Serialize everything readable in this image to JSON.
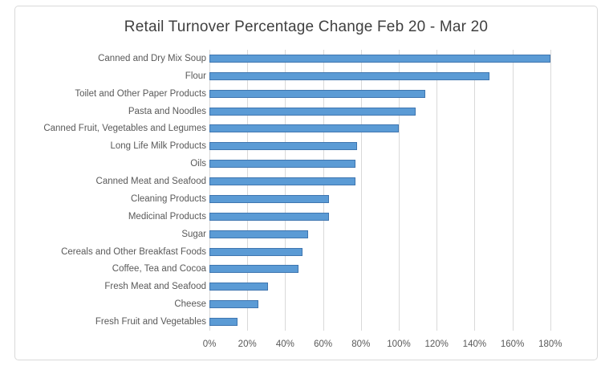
{
  "chart_data": {
    "type": "bar",
    "orientation": "horizontal",
    "title": "Retail Turnover Percentage Change Feb 20 - Mar 20",
    "categories": [
      "Canned and Dry Mix Soup",
      "Flour",
      "Toilet and Other Paper Products",
      "Pasta and Noodles",
      "Canned Fruit, Vegetables and Legumes",
      "Long Life Milk Products",
      "Oils",
      "Canned Meat and Seafood",
      "Cleaning Products",
      "Medicinal Products",
      "Sugar",
      "Cereals and Other Breakfast Foods",
      "Coffee, Tea and Cocoa",
      "Fresh Meat and Seafood",
      "Cheese",
      "Fresh Fruit and Vegetables"
    ],
    "values": [
      180,
      148,
      114,
      109,
      100,
      78,
      77,
      77,
      63,
      63,
      52,
      49,
      47,
      31,
      26,
      15
    ],
    "value_unit": "%",
    "x_tick_labels": [
      "0%",
      "20%",
      "40%",
      "60%",
      "80%",
      "100%",
      "120%",
      "140%",
      "160%",
      "180%"
    ],
    "x_tick_step": 20,
    "xlim": [
      0,
      200
    ],
    "xlabel": "",
    "ylabel": "",
    "grid": "vertical",
    "legend": "none",
    "colors": {
      "bar_fill": "#5B9BD5",
      "bar_border": "#3F76B0",
      "gridline": "#D9D9D9",
      "axis_text": "#595959",
      "title_text": "#404040",
      "frame_border": "#D9D9D9",
      "background": "#FFFFFF"
    }
  }
}
